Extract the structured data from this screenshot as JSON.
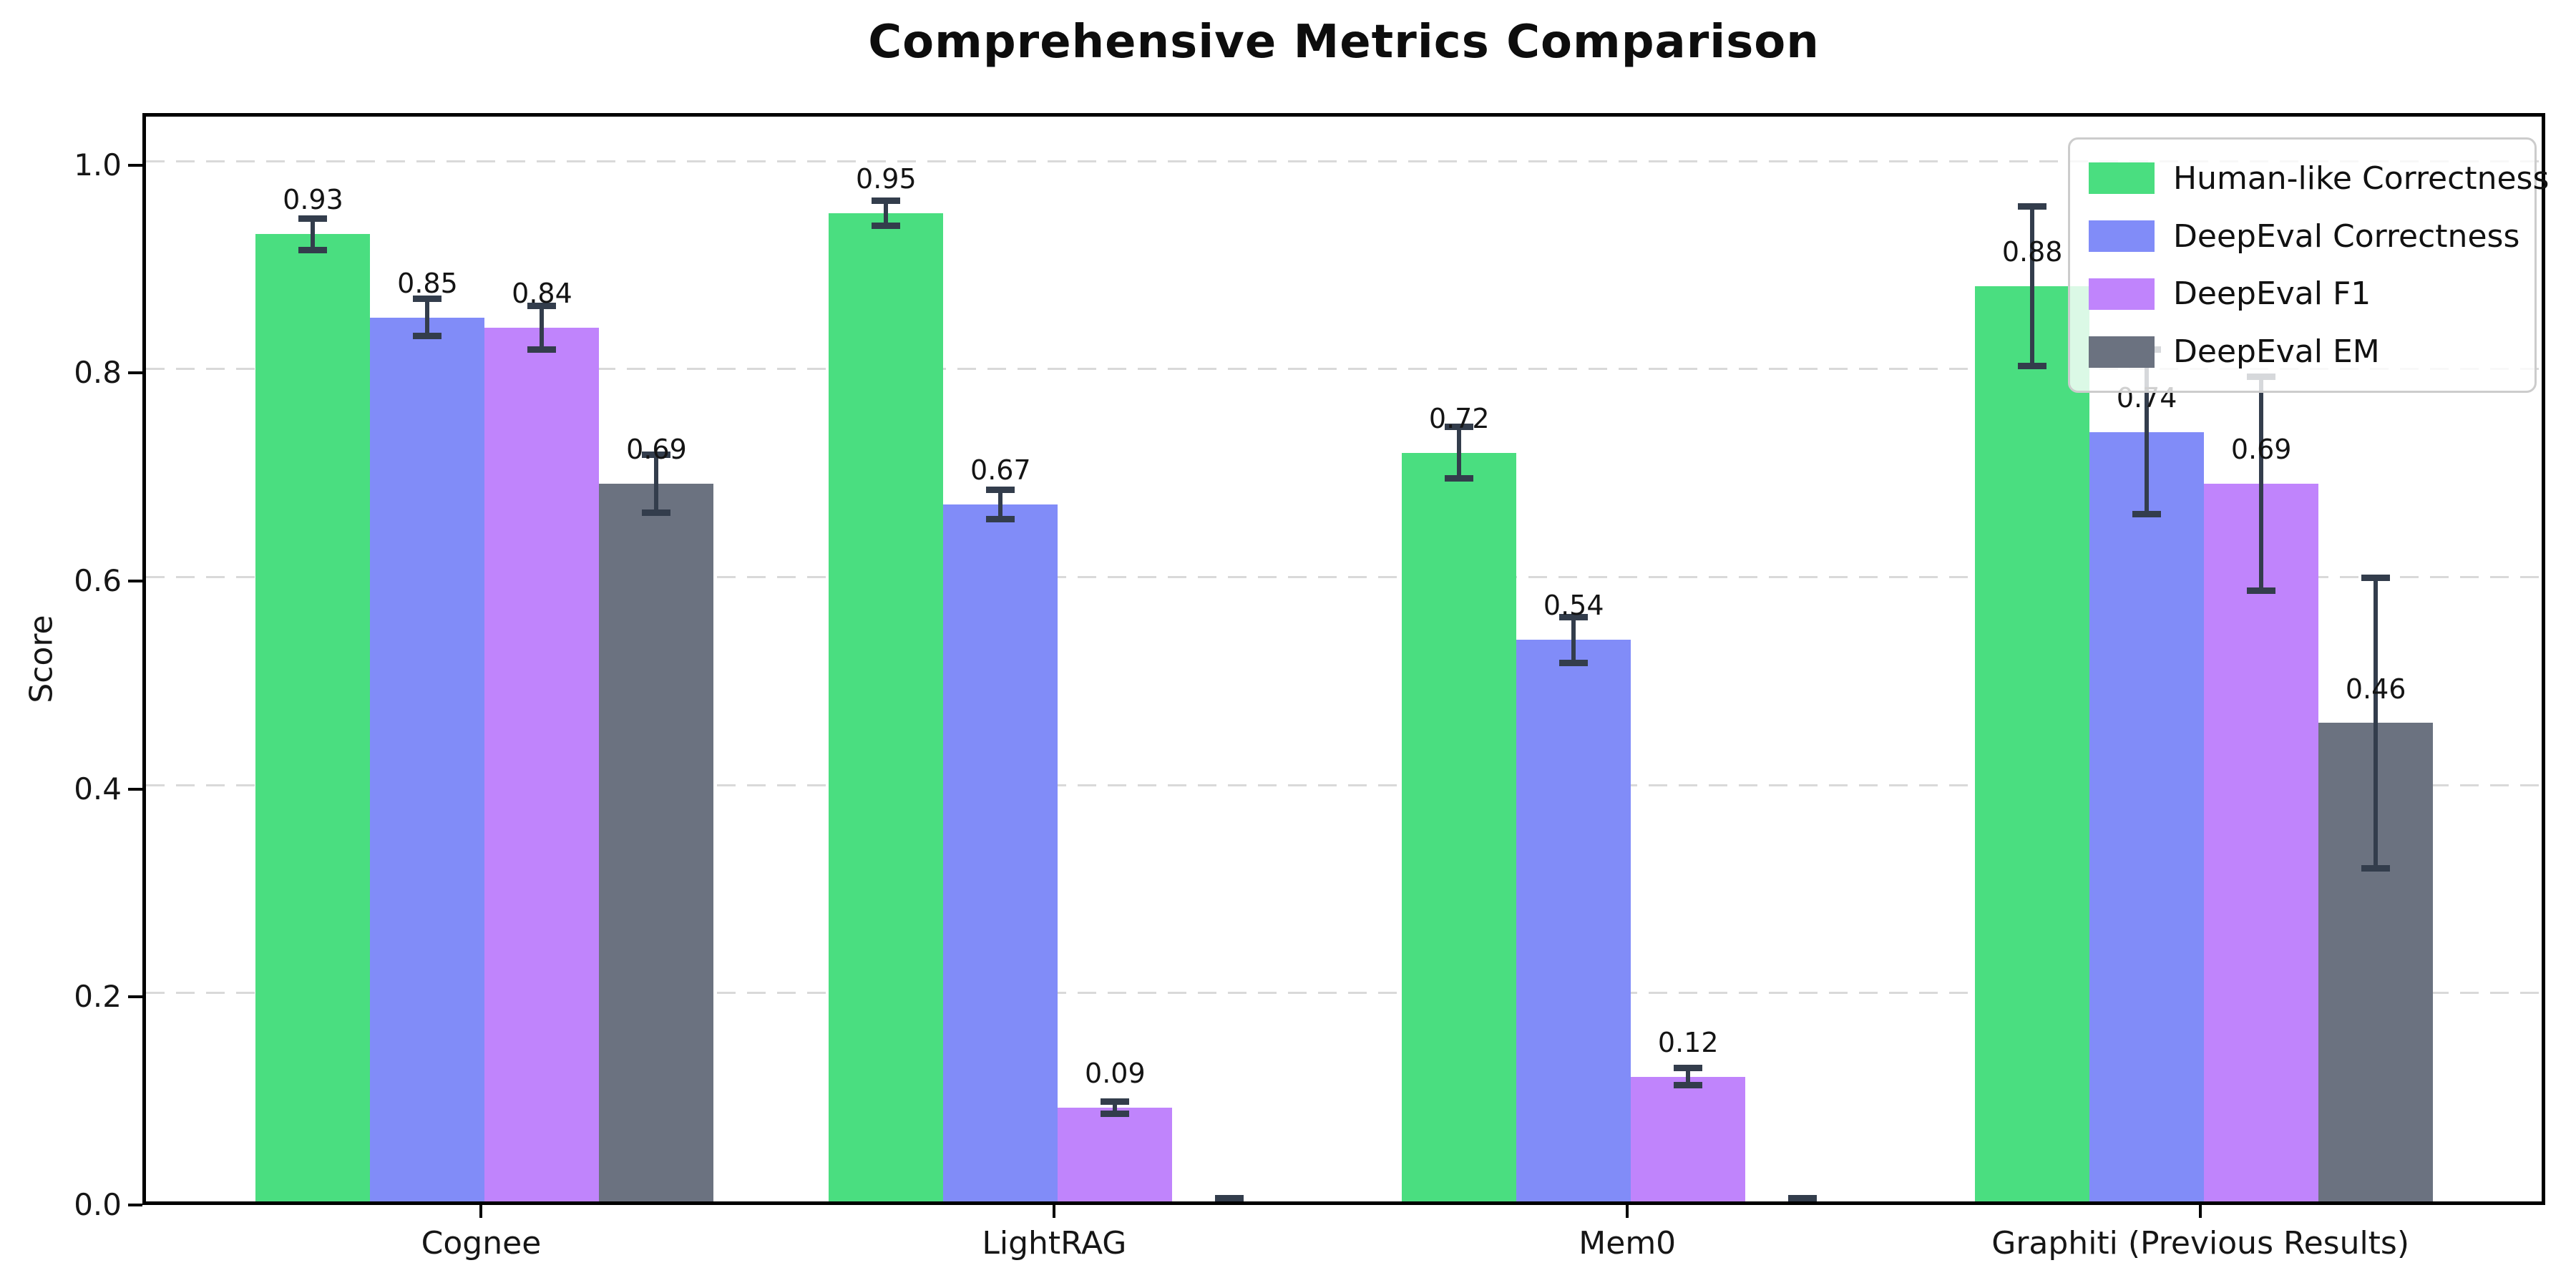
{
  "title": "Comprehensive Metrics Comparison",
  "ylabel": "Score",
  "chart_data": {
    "type": "bar",
    "title": "Comprehensive Metrics Comparison",
    "xlabel": "",
    "ylabel": "Score",
    "categories": [
      "Cognee",
      "LightRAG",
      "Mem0",
      "Graphiti (Previous Results)"
    ],
    "series": [
      {
        "name": "Human-like Correctness",
        "color": "#4ade80",
        "values": [
          0.93,
          0.95,
          0.72,
          0.88
        ],
        "errors": [
          0.015,
          0.012,
          0.025,
          0.077
        ],
        "labels": [
          "0.93",
          "0.95",
          "0.72",
          "0.88"
        ]
      },
      {
        "name": "DeepEval Correctness",
        "color": "#818cf8",
        "values": [
          0.85,
          0.67,
          0.54,
          0.74
        ],
        "errors": [
          0.018,
          0.014,
          0.022,
          0.079
        ],
        "labels": [
          "0.85",
          "0.67",
          "0.54",
          "0.74"
        ]
      },
      {
        "name": "DeepEval F1",
        "color": "#c084fc",
        "values": [
          0.84,
          0.09,
          0.12,
          0.69
        ],
        "errors": [
          0.021,
          0.006,
          0.008,
          0.103
        ],
        "labels": [
          "0.84",
          "0.09",
          "0.12",
          "0.69"
        ]
      },
      {
        "name": "DeepEval EM",
        "color": "#6b7280",
        "values": [
          0.69,
          0.0,
          0.0,
          0.46
        ],
        "errors": [
          0.028,
          0.003,
          0.003,
          0.14
        ],
        "labels": [
          "0.69",
          "",
          "",
          "0.46"
        ]
      }
    ],
    "yticks": [
      "0.0",
      "0.2",
      "0.4",
      "0.6",
      "0.8",
      "1.0"
    ],
    "ylim": [
      0,
      1.05
    ],
    "grid": "horizontal-dashed",
    "legend_position": "upper right",
    "error_bar_color": "#333d4c",
    "grid_color": "#d9d9d9"
  }
}
